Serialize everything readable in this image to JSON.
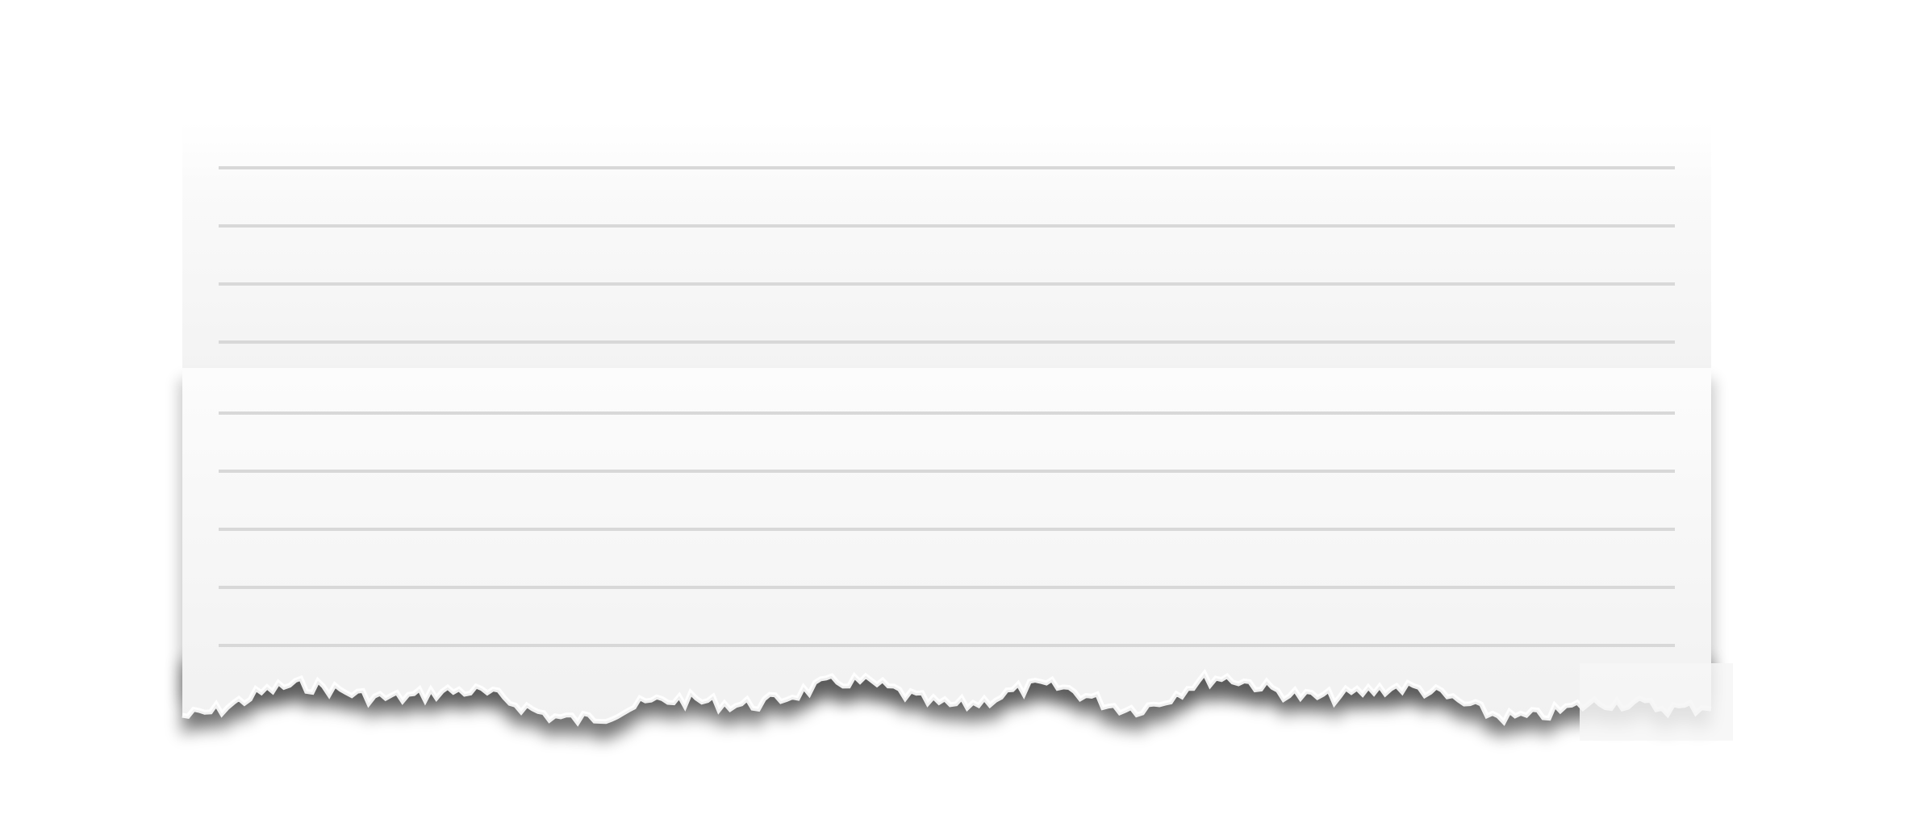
{
  "graphic": {
    "name": "torn-lined-paper",
    "faded_rule_count": 4,
    "main_rule_count": 5,
    "colors": {
      "background": "#ffffff",
      "paper_top": "#fcfcfc",
      "paper_bottom": "#f1f1f1",
      "faded_paper_top": "#fbfbfb",
      "faded_paper_bottom": "#f3f3f3",
      "rule": "#d8d8d8",
      "shadow": "#000000"
    }
  }
}
